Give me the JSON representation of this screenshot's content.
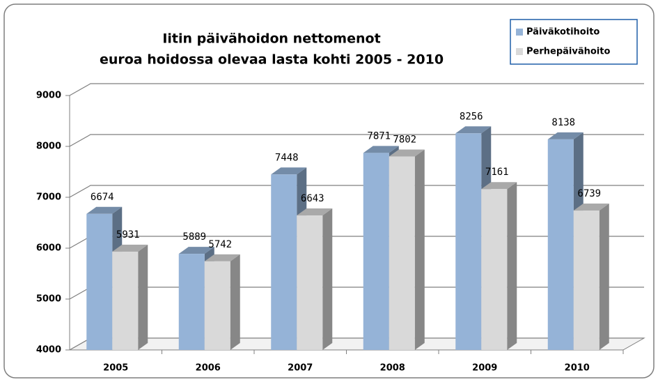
{
  "chart_data": {
    "type": "bar3d",
    "title": [
      "Iitin päivähoidon nettomenot",
      "euroa hoidossa olevaa lasta kohti 2005 - 2010"
    ],
    "categories": [
      "2005",
      "2006",
      "2007",
      "2008",
      "2009",
      "2010"
    ],
    "series": [
      {
        "name": "Päiväkotihoito",
        "color": "#95b3d7",
        "values": [
          6674,
          5889,
          7448,
          7871,
          8256,
          8138
        ]
      },
      {
        "name": "Perhepäivähoito",
        "color": "#d9d9d9",
        "values": [
          5931,
          5742,
          6643,
          7802,
          7161,
          6739
        ]
      }
    ],
    "ylim": [
      4000,
      9000
    ],
    "yticks": [
      4000,
      5000,
      6000,
      7000,
      8000,
      9000
    ],
    "grid": true,
    "legend": "top-right"
  }
}
